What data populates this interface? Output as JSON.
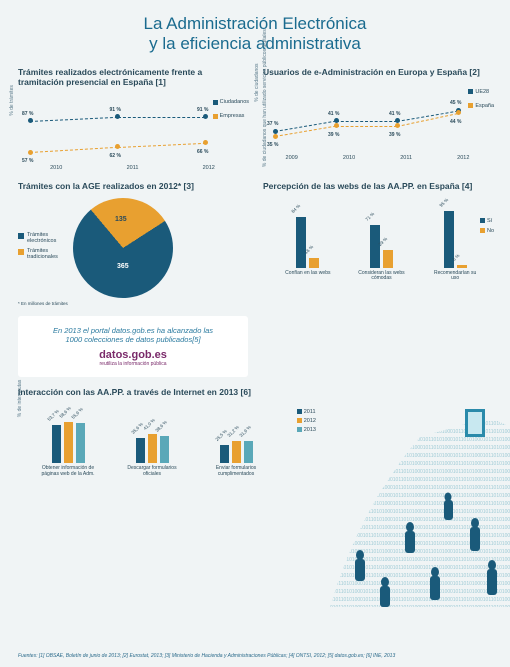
{
  "title_l1": "La Administración Electrónica",
  "title_l2": "y la eficiencia administrativa",
  "colors": {
    "accent_blue": "#1a6b8f",
    "dark_blue": "#2a4a5a",
    "series_blue": "#1a5a7a",
    "series_orange": "#e8a030",
    "series_teal": "#5aa8b8",
    "pie_blue": "#1a5a7a",
    "pie_orange": "#e8a030",
    "bg": "#f0f4f5"
  },
  "chart1": {
    "title": "Trámites realizados electrónicamente frente a tramitación presencial en España [1]",
    "ylabel": "% de trámites",
    "legend": [
      {
        "label": "Ciudadanos",
        "color": "#1a5a7a"
      },
      {
        "label": "Empresas",
        "color": "#e8a030"
      }
    ],
    "years": [
      "2010",
      "2011",
      "2012"
    ],
    "ciudadanos": [
      {
        "v": 87,
        "l": "87 %"
      },
      {
        "v": 91,
        "l": "91 %"
      },
      {
        "v": 91,
        "l": "91 %"
      }
    ],
    "empresas": [
      {
        "v": 57,
        "l": "57 %"
      },
      {
        "v": 62,
        "l": "62 %"
      },
      {
        "v": 66,
        "l": "66 %"
      }
    ],
    "ylim": [
      50,
      100
    ]
  },
  "chart2": {
    "title": "Usuarios de e-Administración en Europa y España [2]",
    "ylabel": "% de ciudadanos",
    "legend": [
      {
        "label": "UE28",
        "color": "#1a5a7a"
      },
      {
        "label": "España",
        "color": "#e8a030"
      }
    ],
    "years": [
      "2009",
      "2010",
      "2011",
      "2012"
    ],
    "ue28": [
      {
        "v": 37,
        "l": "37 %"
      },
      {
        "v": 41,
        "l": "41 %"
      },
      {
        "v": 41,
        "l": "41 %"
      },
      {
        "v": 45,
        "l": "45 %"
      }
    ],
    "espana": [
      {
        "v": 35,
        "l": "35 %"
      },
      {
        "v": 39,
        "l": "39 %"
      },
      {
        "v": 39,
        "l": "39 %"
      },
      {
        "v": 44,
        "l": "44 %"
      }
    ],
    "ylim": [
      30,
      50
    ]
  },
  "pie": {
    "title": "Trámites con la AGE realizados en 2012* [3]",
    "legend": [
      {
        "label": "Trámites electrónicos",
        "color": "#1a5a7a"
      },
      {
        "label": "Trámites tradicionales",
        "color": "#e8a030"
      }
    ],
    "slices": [
      {
        "label": "365",
        "value": 365,
        "color": "#1a5a7a"
      },
      {
        "label": "135",
        "value": 135,
        "color": "#e8a030"
      }
    ],
    "footnote": "* En millones de trámites"
  },
  "bars_perc": {
    "title": "Percepción de las webs de las AA.PP. en España [4]",
    "ylabel": "% de ciudadanos que han utilizado servicios públicos digitales",
    "legend": [
      {
        "label": "Sí",
        "color": "#1a5a7a"
      },
      {
        "label": "No",
        "color": "#e8a030"
      }
    ],
    "groups": [
      {
        "cat": "Confían en las webs",
        "si": {
          "v": 84,
          "l": "84 %"
        },
        "no": {
          "v": 16,
          "l": "16 %"
        }
      },
      {
        "cat": "Consideran las webs cómodas",
        "si": {
          "v": 71,
          "l": "71 %"
        },
        "no": {
          "v": 29,
          "l": "29 %"
        }
      },
      {
        "cat": "Recomendarían su uso",
        "si": {
          "v": 95,
          "l": "95 %"
        },
        "no": {
          "v": 5,
          "l": "5 %"
        }
      }
    ],
    "ylim": [
      0,
      100
    ]
  },
  "promo": {
    "text_l1": "En 2013 el portal datos.gob.es ha alcanzado las",
    "text_l2": "1000 colecciones de datos publicados[5]",
    "logo": "datos.gob.es",
    "tagline": "reutiliza la información pública"
  },
  "bars_int": {
    "title": "Interacción con las AA.PP. a través de Internet en 2013 [6]",
    "ylabel": "% de internautas",
    "legend": [
      {
        "label": "2011",
        "color": "#1a5a7a"
      },
      {
        "label": "2012",
        "color": "#e8a030"
      },
      {
        "label": "2013",
        "color": "#5aa8b8"
      }
    ],
    "groups": [
      {
        "cat": "Obtener información de páginas web de la Adm.",
        "v": [
          {
            "v": 53.7,
            "l": "53,7 %"
          },
          {
            "v": 58.6,
            "l": "58,6 %"
          },
          {
            "v": 55.9,
            "l": "55,9 %"
          }
        ]
      },
      {
        "cat": "Descargar formularios oficiales",
        "v": [
          {
            "v": 35.6,
            "l": "35,6 %"
          },
          {
            "v": 41.0,
            "l": "41,0 %"
          },
          {
            "v": 38.6,
            "l": "38,6 %"
          }
        ]
      },
      {
        "cat": "Enviar formularios cumplimentados",
        "v": [
          {
            "v": 25.5,
            "l": "25,5 %"
          },
          {
            "v": 31.2,
            "l": "31,2 %"
          },
          {
            "v": 31.9,
            "l": "31,9 %"
          }
        ]
      }
    ],
    "ylim": [
      0,
      70
    ]
  },
  "sources": "Fuentes: [1] OBSAE, Boletín de junio de 2013; [2] Eurostat, 2013; [3] Ministerio de Hacienda y Administraciones Públicas; [4] ONTSI, 2012; [5] datos.gob.es; [6] INE, 2013"
}
